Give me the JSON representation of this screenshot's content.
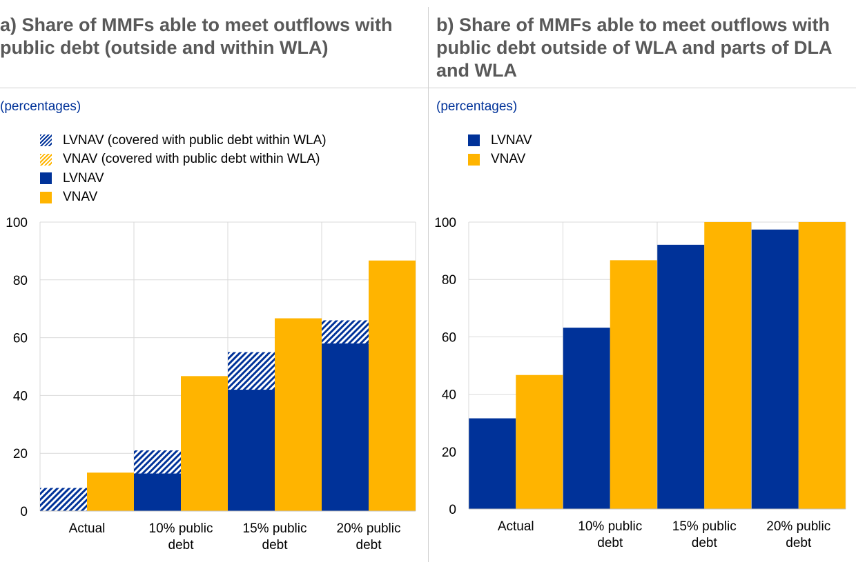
{
  "panel_a": {
    "title_lines": [
      "a) Share of MMFs able to meet outflows with",
      "public debt (outside and within WLA)"
    ],
    "subtitle": "(percentages)",
    "legend": [
      {
        "label": "LVNAV (covered with public debt within WLA)",
        "style": "lvnav-hatched"
      },
      {
        "label": "VNAV (covered with public debt within WLA)",
        "style": "vnav-hatched"
      },
      {
        "label": "LVNAV",
        "style": "lvnav"
      },
      {
        "label": "VNAV",
        "style": "vnav"
      }
    ]
  },
  "panel_b": {
    "title_lines": [
      "b) Share of MMFs able to meet outflows with",
      "public debt outside of WLA and parts of DLA",
      "and WLA"
    ],
    "subtitle": "(percentages)",
    "legend": [
      {
        "label": "LVNAV",
        "style": "lvnav"
      },
      {
        "label": "VNAV",
        "style": "vnav"
      }
    ]
  },
  "colors": {
    "lvnav": "#003299",
    "vnav": "#ffb400",
    "grid": "#d9d9d9"
  },
  "chart_data": [
    {
      "type": "bar",
      "stacked": true,
      "categories": [
        [
          "Actual"
        ],
        [
          "10% public",
          "debt"
        ],
        [
          "15% public",
          "debt"
        ],
        [
          "20% public",
          "debt"
        ]
      ],
      "ylim": [
        0,
        100
      ],
      "yticks": [
        0,
        20,
        40,
        60,
        80,
        100
      ],
      "series": [
        {
          "name": "LVNAV",
          "group": "LVNAV",
          "hatched": false,
          "values": [
            0,
            13,
            42,
            58
          ]
        },
        {
          "name": "LVNAV (covered with public debt within WLA)",
          "group": "LVNAV",
          "hatched": true,
          "values": [
            8,
            8,
            13,
            8
          ]
        },
        {
          "name": "VNAV",
          "group": "VNAV",
          "hatched": false,
          "values": [
            13.3,
            46.7,
            66.7,
            86.7
          ]
        },
        {
          "name": "VNAV (covered with public debt within WLA)",
          "group": "VNAV",
          "hatched": true,
          "values": [
            0,
            0,
            0,
            0
          ]
        }
      ],
      "grid": true,
      "legend_position": "top-left"
    },
    {
      "type": "bar",
      "stacked": false,
      "categories": [
        [
          "Actual"
        ],
        [
          "10% public",
          "debt"
        ],
        [
          "15% public",
          "debt"
        ],
        [
          "20% public",
          "debt"
        ]
      ],
      "ylim": [
        0,
        100
      ],
      "yticks": [
        0,
        20,
        40,
        60,
        80,
        100
      ],
      "series": [
        {
          "name": "LVNAV",
          "group": "LVNAV",
          "hatched": false,
          "values": [
            31.6,
            63.2,
            92.1,
            97.4
          ]
        },
        {
          "name": "VNAV",
          "group": "VNAV",
          "hatched": false,
          "values": [
            46.7,
            86.7,
            100,
            100
          ]
        }
      ],
      "grid": true,
      "legend_position": "top-left"
    }
  ]
}
